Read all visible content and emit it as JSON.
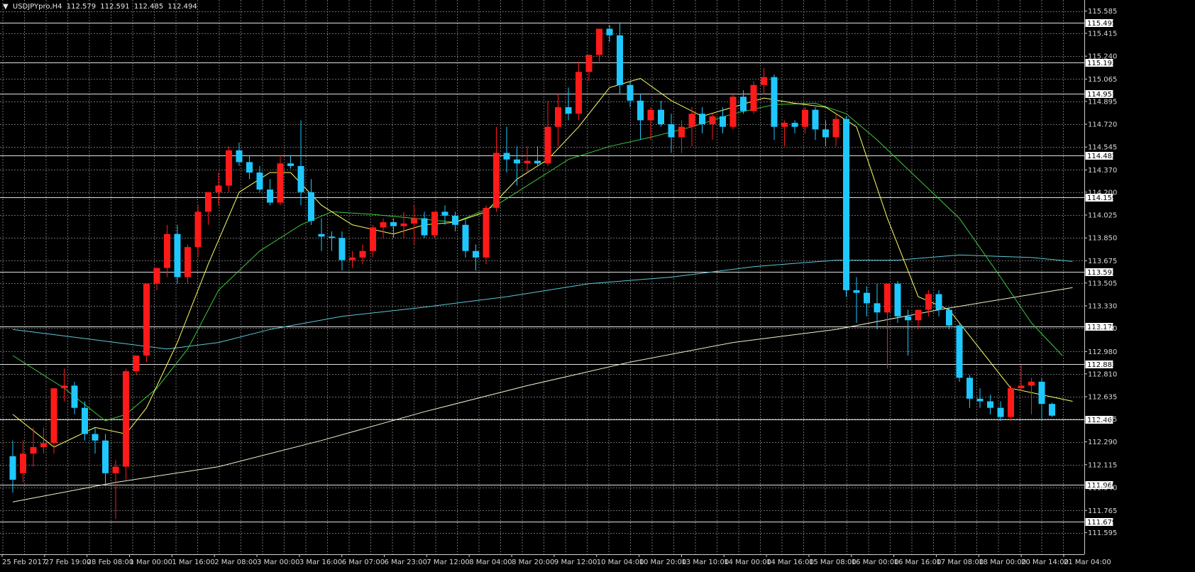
{
  "header": {
    "arrow": "▼",
    "symbol": "USDJPYpro,H4",
    "open": "112.579",
    "high": "112.591",
    "low": "112.485",
    "close": "112.494"
  },
  "colors": {
    "background": "#000000",
    "grid": "#6a6a6a",
    "bull": "#ff1a1a",
    "bear": "#1ec8ff",
    "ma_fast": "#ffff66",
    "ma_mid": "#3cc83c",
    "ma_teal": "#5bc8d8",
    "ma_slow": "#f0f0d0",
    "hline": "#e0e0e0"
  },
  "chart_data": {
    "type": "candlestick",
    "ylim": [
      111.43,
      115.67
    ],
    "y_ticks": [
      "115.585",
      "115.415",
      "115.240",
      "115.065",
      "114.895",
      "114.720",
      "114.545",
      "114.370",
      "114.200",
      "114.025",
      "113.850",
      "113.675",
      "113.505",
      "113.330",
      "113.160",
      "112.980",
      "112.810",
      "112.635",
      "112.465",
      "112.290",
      "112.115",
      "111.940",
      "111.765",
      "111.595"
    ],
    "x_labels": [
      "25 Feb 2017",
      "27 Feb 19:00",
      "28 Feb 08:00",
      "1 Mar 00:00",
      "1 Mar 16:00",
      "2 Mar 08:00",
      "3 Mar 00:00",
      "3 Mar 16:00",
      "6 Mar 07:00",
      "6 Mar 23:00",
      "7 Mar 12:00",
      "8 Mar 04:00",
      "8 Mar 20:00",
      "9 Mar 12:00",
      "10 Mar 04:00",
      "10 Mar 20:00",
      "13 Mar 10:00",
      "14 Mar 00:00",
      "14 Mar 16:00",
      "15 Mar 08:00",
      "16 Mar 00:00",
      "16 Mar 16:00",
      "17 Mar 08:00",
      "18 Mar 00:00",
      "20 Mar 14:00",
      "21 Mar 04:00"
    ],
    "horizontal_levels": [
      {
        "label": "115.495",
        "value": 115.495
      },
      {
        "label": "115.193",
        "value": 115.193
      },
      {
        "label": "114.951",
        "value": 114.951
      },
      {
        "label": "114.482",
        "value": 114.482
      },
      {
        "label": "114.159",
        "value": 114.159
      },
      {
        "label": "113.593",
        "value": 113.593
      },
      {
        "label": "113.172",
        "value": 113.172
      },
      {
        "label": "112.883",
        "value": 112.883
      },
      {
        "label": "112.463",
        "value": 112.463
      },
      {
        "label": "111.960",
        "value": 111.96
      },
      {
        "label": "111.679",
        "value": 111.679
      }
    ],
    "candles": [
      {
        "o": 112.18,
        "h": 112.3,
        "l": 111.9,
        "c": 112.0
      },
      {
        "o": 112.05,
        "h": 112.3,
        "l": 111.98,
        "c": 112.2
      },
      {
        "o": 112.2,
        "h": 112.4,
        "l": 112.1,
        "c": 112.25
      },
      {
        "o": 112.25,
        "h": 112.4,
        "l": 112.2,
        "c": 112.28
      },
      {
        "o": 112.28,
        "h": 112.7,
        "l": 112.2,
        "c": 112.7
      },
      {
        "o": 112.7,
        "h": 112.85,
        "l": 112.6,
        "c": 112.72
      },
      {
        "o": 112.72,
        "h": 112.75,
        "l": 112.5,
        "c": 112.55
      },
      {
        "o": 112.55,
        "h": 112.6,
        "l": 112.3,
        "c": 112.35
      },
      {
        "o": 112.35,
        "h": 112.4,
        "l": 112.2,
        "c": 112.3
      },
      {
        "o": 112.3,
        "h": 112.35,
        "l": 111.95,
        "c": 112.05
      },
      {
        "o": 112.05,
        "h": 112.15,
        "l": 111.7,
        "c": 112.1
      },
      {
        "o": 112.1,
        "h": 112.85,
        "l": 112.0,
        "c": 112.83
      },
      {
        "o": 112.83,
        "h": 112.95,
        "l": 112.8,
        "c": 112.95
      },
      {
        "o": 112.95,
        "h": 113.5,
        "l": 112.9,
        "c": 113.5
      },
      {
        "o": 113.5,
        "h": 113.62,
        "l": 113.45,
        "c": 113.62
      },
      {
        "o": 113.62,
        "h": 113.95,
        "l": 113.55,
        "c": 113.88
      },
      {
        "o": 113.88,
        "h": 113.95,
        "l": 113.5,
        "c": 113.55
      },
      {
        "o": 113.55,
        "h": 113.8,
        "l": 113.5,
        "c": 113.78
      },
      {
        "o": 113.78,
        "h": 114.1,
        "l": 113.7,
        "c": 114.05
      },
      {
        "o": 114.05,
        "h": 114.2,
        "l": 113.95,
        "c": 114.2
      },
      {
        "o": 114.2,
        "h": 114.35,
        "l": 114.1,
        "c": 114.25
      },
      {
        "o": 114.25,
        "h": 114.55,
        "l": 114.2,
        "c": 114.52
      },
      {
        "o": 114.52,
        "h": 114.58,
        "l": 114.4,
        "c": 114.43
      },
      {
        "o": 114.43,
        "h": 114.48,
        "l": 114.3,
        "c": 114.35
      },
      {
        "o": 114.35,
        "h": 114.4,
        "l": 114.2,
        "c": 114.22
      },
      {
        "o": 114.22,
        "h": 114.3,
        "l": 114.1,
        "c": 114.12
      },
      {
        "o": 114.12,
        "h": 114.48,
        "l": 114.1,
        "c": 114.42
      },
      {
        "o": 114.42,
        "h": 114.48,
        "l": 114.38,
        "c": 114.4
      },
      {
        "o": 114.4,
        "h": 114.75,
        "l": 114.1,
        "c": 114.2
      },
      {
        "o": 114.2,
        "h": 114.3,
        "l": 113.95,
        "c": 113.98
      },
      {
        "o": 113.88,
        "h": 114.0,
        "l": 113.75,
        "c": 113.86
      },
      {
        "o": 113.86,
        "h": 113.9,
        "l": 113.75,
        "c": 113.85
      },
      {
        "o": 113.85,
        "h": 113.9,
        "l": 113.6,
        "c": 113.68
      },
      {
        "o": 113.68,
        "h": 113.75,
        "l": 113.62,
        "c": 113.7
      },
      {
        "o": 113.7,
        "h": 113.8,
        "l": 113.65,
        "c": 113.75
      },
      {
        "o": 113.75,
        "h": 113.95,
        "l": 113.7,
        "c": 113.93
      },
      {
        "o": 113.93,
        "h": 114.0,
        "l": 113.85,
        "c": 113.97
      },
      {
        "o": 113.97,
        "h": 114.0,
        "l": 113.85,
        "c": 113.94
      },
      {
        "o": 113.94,
        "h": 114.05,
        "l": 113.85,
        "c": 113.96
      },
      {
        "o": 113.96,
        "h": 114.1,
        "l": 113.8,
        "c": 114.0
      },
      {
        "o": 114.0,
        "h": 114.05,
        "l": 113.85,
        "c": 113.87
      },
      {
        "o": 113.87,
        "h": 114.05,
        "l": 113.85,
        "c": 114.05
      },
      {
        "o": 114.05,
        "h": 114.1,
        "l": 113.95,
        "c": 114.02
      },
      {
        "o": 114.02,
        "h": 114.05,
        "l": 113.9,
        "c": 113.95
      },
      {
        "o": 113.95,
        "h": 114.0,
        "l": 113.7,
        "c": 113.75
      },
      {
        "o": 113.75,
        "h": 113.8,
        "l": 113.6,
        "c": 113.7
      },
      {
        "o": 113.7,
        "h": 114.1,
        "l": 113.65,
        "c": 114.08
      },
      {
        "o": 114.08,
        "h": 114.7,
        "l": 114.05,
        "c": 114.5
      },
      {
        "o": 114.5,
        "h": 114.7,
        "l": 114.35,
        "c": 114.45
      },
      {
        "o": 114.45,
        "h": 114.55,
        "l": 114.25,
        "c": 114.42
      },
      {
        "o": 114.42,
        "h": 114.55,
        "l": 114.35,
        "c": 114.44
      },
      {
        "o": 114.44,
        "h": 114.55,
        "l": 114.4,
        "c": 114.42
      },
      {
        "o": 114.42,
        "h": 114.9,
        "l": 114.4,
        "c": 114.7
      },
      {
        "o": 114.7,
        "h": 114.95,
        "l": 114.55,
        "c": 114.85
      },
      {
        "o": 114.85,
        "h": 115.0,
        "l": 114.75,
        "c": 114.8
      },
      {
        "o": 114.8,
        "h": 115.2,
        "l": 114.75,
        "c": 115.12
      },
      {
        "o": 115.12,
        "h": 115.25,
        "l": 115.05,
        "c": 115.25
      },
      {
        "o": 115.25,
        "h": 115.45,
        "l": 115.2,
        "c": 115.45
      },
      {
        "o": 115.45,
        "h": 115.48,
        "l": 115.35,
        "c": 115.4
      },
      {
        "o": 115.4,
        "h": 115.5,
        "l": 114.95,
        "c": 115.02
      },
      {
        "o": 115.02,
        "h": 115.05,
        "l": 114.85,
        "c": 114.9
      },
      {
        "o": 114.9,
        "h": 114.95,
        "l": 114.6,
        "c": 114.75
      },
      {
        "o": 114.75,
        "h": 114.85,
        "l": 114.6,
        "c": 114.83
      },
      {
        "o": 114.83,
        "h": 114.9,
        "l": 114.7,
        "c": 114.72
      },
      {
        "o": 114.72,
        "h": 114.8,
        "l": 114.5,
        "c": 114.62
      },
      {
        "o": 114.62,
        "h": 114.75,
        "l": 114.5,
        "c": 114.7
      },
      {
        "o": 114.7,
        "h": 114.85,
        "l": 114.55,
        "c": 114.8
      },
      {
        "o": 114.8,
        "h": 114.85,
        "l": 114.65,
        "c": 114.72
      },
      {
        "o": 114.72,
        "h": 114.8,
        "l": 114.6,
        "c": 114.78
      },
      {
        "o": 114.78,
        "h": 114.85,
        "l": 114.65,
        "c": 114.7
      },
      {
        "o": 114.7,
        "h": 114.95,
        "l": 114.68,
        "c": 114.93
      },
      {
        "o": 114.93,
        "h": 114.98,
        "l": 114.8,
        "c": 114.82
      },
      {
        "o": 114.82,
        "h": 115.05,
        "l": 114.8,
        "c": 115.02
      },
      {
        "o": 115.02,
        "h": 115.15,
        "l": 114.95,
        "c": 115.08
      },
      {
        "o": 115.08,
        "h": 115.1,
        "l": 114.6,
        "c": 114.7
      },
      {
        "o": 114.7,
        "h": 114.75,
        "l": 114.55,
        "c": 114.73
      },
      {
        "o": 114.73,
        "h": 114.75,
        "l": 114.65,
        "c": 114.7
      },
      {
        "o": 114.7,
        "h": 114.85,
        "l": 114.65,
        "c": 114.83
      },
      {
        "o": 114.83,
        "h": 114.85,
        "l": 114.6,
        "c": 114.68
      },
      {
        "o": 114.68,
        "h": 114.75,
        "l": 114.55,
        "c": 114.62
      },
      {
        "o": 114.62,
        "h": 114.8,
        "l": 114.55,
        "c": 114.76
      },
      {
        "o": 114.76,
        "h": 114.78,
        "l": 113.4,
        "c": 113.45
      },
      {
        "o": 113.45,
        "h": 113.55,
        "l": 113.2,
        "c": 113.43
      },
      {
        "o": 113.43,
        "h": 113.48,
        "l": 113.25,
        "c": 113.35
      },
      {
        "o": 113.35,
        "h": 113.5,
        "l": 113.15,
        "c": 113.28
      },
      {
        "o": 113.28,
        "h": 113.5,
        "l": 112.85,
        "c": 113.5
      },
      {
        "o": 113.5,
        "h": 113.52,
        "l": 113.2,
        "c": 113.25
      },
      {
        "o": 113.25,
        "h": 113.3,
        "l": 112.95,
        "c": 113.22
      },
      {
        "o": 113.22,
        "h": 113.3,
        "l": 113.15,
        "c": 113.3
      },
      {
        "o": 113.3,
        "h": 113.45,
        "l": 113.25,
        "c": 113.42
      },
      {
        "o": 113.42,
        "h": 113.45,
        "l": 113.25,
        "c": 113.3
      },
      {
        "o": 113.3,
        "h": 113.32,
        "l": 113.15,
        "c": 113.18
      },
      {
        "o": 113.18,
        "h": 113.2,
        "l": 112.75,
        "c": 112.78
      },
      {
        "o": 112.78,
        "h": 112.8,
        "l": 112.55,
        "c": 112.62
      },
      {
        "o": 112.62,
        "h": 112.7,
        "l": 112.55,
        "c": 112.6
      },
      {
        "o": 112.6,
        "h": 112.65,
        "l": 112.5,
        "c": 112.55
      },
      {
        "o": 112.55,
        "h": 112.6,
        "l": 112.45,
        "c": 112.48
      },
      {
        "o": 112.48,
        "h": 112.72,
        "l": 112.45,
        "c": 112.7
      },
      {
        "o": 112.7,
        "h": 112.88,
        "l": 112.68,
        "c": 112.72
      },
      {
        "o": 112.72,
        "h": 112.78,
        "l": 112.5,
        "c": 112.75
      },
      {
        "o": 112.75,
        "h": 112.78,
        "l": 112.45,
        "c": 112.58
      },
      {
        "o": 112.58,
        "h": 112.59,
        "l": 112.48,
        "c": 112.49
      }
    ],
    "ma_fast": [
      [
        0,
        112.5
      ],
      [
        4,
        112.25
      ],
      [
        8,
        112.4
      ],
      [
        11,
        112.35
      ],
      [
        13,
        112.55
      ],
      [
        16,
        113.05
      ],
      [
        19,
        113.65
      ],
      [
        22,
        114.2
      ],
      [
        25,
        114.35
      ],
      [
        27,
        114.35
      ],
      [
        30,
        114.1
      ],
      [
        33,
        113.95
      ],
      [
        37,
        113.88
      ],
      [
        40,
        113.95
      ],
      [
        43,
        113.97
      ],
      [
        46,
        114.05
      ],
      [
        49,
        114.3
      ],
      [
        52,
        114.45
      ],
      [
        55,
        114.7
      ],
      [
        58,
        115.0
      ],
      [
        61,
        115.07
      ],
      [
        64,
        114.9
      ],
      [
        67,
        114.78
      ],
      [
        70,
        114.85
      ],
      [
        73,
        114.92
      ],
      [
        76,
        114.88
      ],
      [
        79,
        114.85
      ],
      [
        82,
        114.7
      ],
      [
        85,
        114.0
      ],
      [
        88,
        113.4
      ],
      [
        91,
        113.3
      ],
      [
        94,
        113.0
      ],
      [
        97,
        112.7
      ],
      [
        100,
        112.65
      ],
      [
        103,
        112.6
      ]
    ],
    "ma_mid": [
      [
        0,
        112.95
      ],
      [
        5,
        112.7
      ],
      [
        9,
        112.45
      ],
      [
        11,
        112.5
      ],
      [
        14,
        112.7
      ],
      [
        17,
        113.0
      ],
      [
        20,
        113.45
      ],
      [
        24,
        113.75
      ],
      [
        28,
        113.95
      ],
      [
        31,
        114.05
      ],
      [
        35,
        114.03
      ],
      [
        39,
        114.0
      ],
      [
        43,
        113.97
      ],
      [
        47,
        114.1
      ],
      [
        51,
        114.3
      ],
      [
        54,
        114.45
      ],
      [
        58,
        114.55
      ],
      [
        62,
        114.62
      ],
      [
        66,
        114.7
      ],
      [
        70,
        114.8
      ],
      [
        74,
        114.87
      ],
      [
        78,
        114.88
      ],
      [
        81,
        114.8
      ],
      [
        84,
        114.6
      ],
      [
        88,
        114.3
      ],
      [
        92,
        114.0
      ],
      [
        96,
        113.55
      ],
      [
        99,
        113.2
      ],
      [
        102,
        112.95
      ]
    ],
    "ma_teal": [
      [
        0,
        113.15
      ],
      [
        5,
        113.1
      ],
      [
        10,
        113.05
      ],
      [
        15,
        113.0
      ],
      [
        20,
        113.05
      ],
      [
        25,
        113.15
      ],
      [
        32,
        113.25
      ],
      [
        40,
        113.32
      ],
      [
        48,
        113.4
      ],
      [
        56,
        113.5
      ],
      [
        64,
        113.55
      ],
      [
        72,
        113.63
      ],
      [
        80,
        113.68
      ],
      [
        86,
        113.68
      ],
      [
        92,
        113.72
      ],
      [
        99,
        113.7
      ],
      [
        103,
        113.67
      ]
    ],
    "ma_slow": [
      [
        0,
        111.83
      ],
      [
        10,
        111.98
      ],
      [
        20,
        112.1
      ],
      [
        30,
        112.3
      ],
      [
        40,
        112.52
      ],
      [
        50,
        112.72
      ],
      [
        60,
        112.9
      ],
      [
        70,
        113.05
      ],
      [
        80,
        113.15
      ],
      [
        90,
        113.3
      ],
      [
        103,
        113.47
      ]
    ]
  }
}
